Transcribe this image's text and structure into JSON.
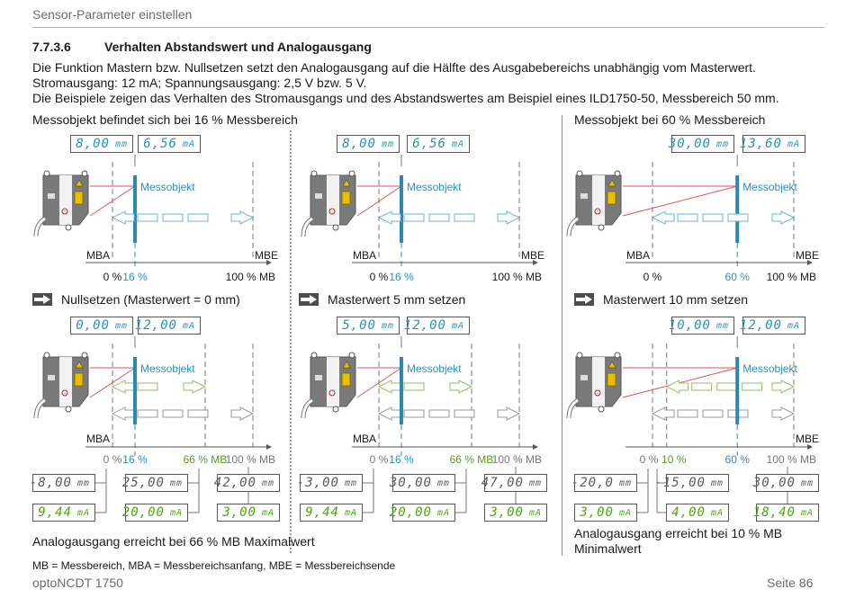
{
  "header": {
    "title": "Sensor-Parameter einstellen"
  },
  "section": {
    "number": "7.7.3.6",
    "title": "Verhalten Abstandswert und Analogausgang"
  },
  "intro": [
    "Die Funktion Mastern bzw. Nullsetzen setzt den Analogausgang auf die Hälfte des Ausgabebereichs unabhängig vom Masterwert.",
    "Stromausgang: 12 mA; Spannungsausgang: 2,5 V bzw. 5 V.",
    "Die Beispiele zeigen das Verhalten des Stromausgangs und des Abstandswertes am Beispiel eines ILD1750-50, Messbereich 50 mm."
  ],
  "labels": {
    "mba": "MBA",
    "mbe": "MBE",
    "messobjekt": "Messobjekt",
    "unit_mm": "mm",
    "unit_ma": "mA"
  },
  "colors": {
    "blue": "#2d8fb8",
    "green": "#5a9b26",
    "laser": "#e0525a",
    "object": "#2a88b0"
  },
  "panels": [
    {
      "caption": "Messobjekt befindet sich bei 16 % Messbereich",
      "top": {
        "mm": "8,00",
        "ma": "6,56",
        "ticks": [
          "0 %",
          "16 %",
          "100 % MB"
        ]
      },
      "step": "Nullsetzen (Masterwert = 0 mm)",
      "bottom": {
        "mm": "0,00",
        "ma": "12,00",
        "ticks": [
          "0 %",
          "16 %",
          "66 % MB",
          "100 % MB"
        ],
        "readouts": [
          {
            "mm": "-8,00",
            "ma": "9,44"
          },
          {
            "mm": "25,00",
            "ma": "20,00"
          },
          {
            "mm": "42,00",
            "ma": "3,00"
          }
        ]
      },
      "note": "Analogausgang erreicht bei 66 % MB Maximalwert"
    },
    {
      "caption": "",
      "top": {
        "mm": "8,00",
        "ma": "6,56",
        "ticks": [
          "0 %",
          "16 %",
          "100 % MB"
        ]
      },
      "step": "Masterwert 5 mm setzen",
      "bottom": {
        "mm": "5,00",
        "ma": "12,00",
        "ticks": [
          "0 %",
          "16 %",
          "66 % MB",
          "100 % MB"
        ],
        "readouts": [
          {
            "mm": "-3,00",
            "ma": "9,44"
          },
          {
            "mm": "30,00",
            "ma": "20,00"
          },
          {
            "mm": "47,00",
            "ma": "3,00"
          }
        ]
      },
      "note": ""
    },
    {
      "caption": "Messobjekt bei 60 % Messbereich",
      "top": {
        "mm": "30,00",
        "ma": "13,60",
        "ticks": [
          "0 %",
          "60 %",
          "100 % MB"
        ]
      },
      "step": "Masterwert 10 mm setzen",
      "bottom": {
        "mm": "10,00",
        "ma": "12,00",
        "ticks": [
          "0 %",
          "10 %",
          "60 %",
          "100 % MB"
        ],
        "readouts": [
          {
            "mm": "-20,0",
            "ma": "3,00"
          },
          {
            "mm": "-15,00",
            "ma": "4,00"
          },
          {
            "mm": "30,00",
            "ma": "18,40"
          }
        ]
      },
      "note": "Analogausgang erreicht bei 10 % MB",
      "note2": "Minimalwert"
    }
  ],
  "legend": "MB = Messbereich, MBA = Messbereichsanfang, MBE = Messbereichsende",
  "footer": {
    "product": "optoNCDT 1750",
    "page": "Seite 86"
  }
}
